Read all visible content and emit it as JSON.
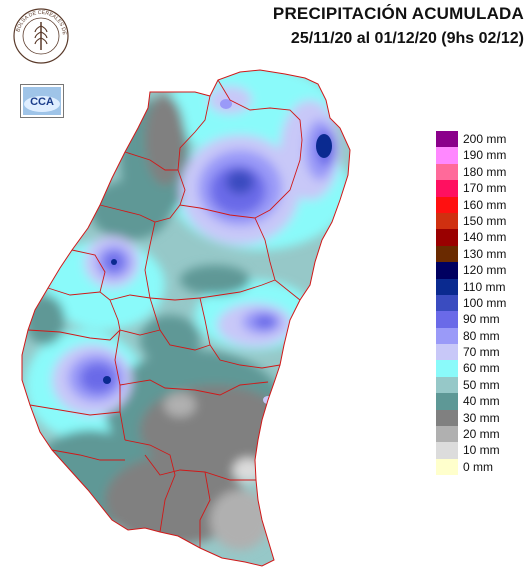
{
  "header": {
    "title_line1": "PRECIPITACIÓN ACUMULADA",
    "title_line2": "25/11/20 al 01/12/20 (9hs 02/12)"
  },
  "logos": {
    "bolsa_text": "BOLSA DE CEREALES DE ENTRE RIOS",
    "cca_text": "CCA"
  },
  "legend": [
    {
      "label": "200 mm",
      "color": "#8B008B"
    },
    {
      "label": "190 mm",
      "color": "#FF88FF"
    },
    {
      "label": "180 mm",
      "color": "#FF6A9A"
    },
    {
      "label": "170 mm",
      "color": "#FF1060"
    },
    {
      "label": "160 mm",
      "color": "#FF1010"
    },
    {
      "label": "150 mm",
      "color": "#D03010"
    },
    {
      "label": "140 mm",
      "color": "#9A0000"
    },
    {
      "label": "130 mm",
      "color": "#6A2A00"
    },
    {
      "label": "120 mm",
      "color": "#000060"
    },
    {
      "label": "110 mm",
      "color": "#0A2A90"
    },
    {
      "label": "100 mm",
      "color": "#3A4CC0"
    },
    {
      "label": "90 mm",
      "color": "#6A6AE8"
    },
    {
      "label": "80 mm",
      "color": "#9A9AF8"
    },
    {
      "label": "70 mm",
      "color": "#C8C8F8"
    },
    {
      "label": "60 mm",
      "color": "#8AFAFA"
    },
    {
      "label": "50 mm",
      "color": "#96C8C8"
    },
    {
      "label": "40 mm",
      "color": "#5E9896"
    },
    {
      "label": "30 mm",
      "color": "#808080"
    },
    {
      "label": "20 mm",
      "color": "#B0B0B0"
    },
    {
      "label": "10 mm",
      "color": "#DCDCDC"
    },
    {
      "label": "0 mm",
      "color": "#FFFFCC"
    }
  ],
  "colors": {
    "department_borders": "#D01818"
  }
}
